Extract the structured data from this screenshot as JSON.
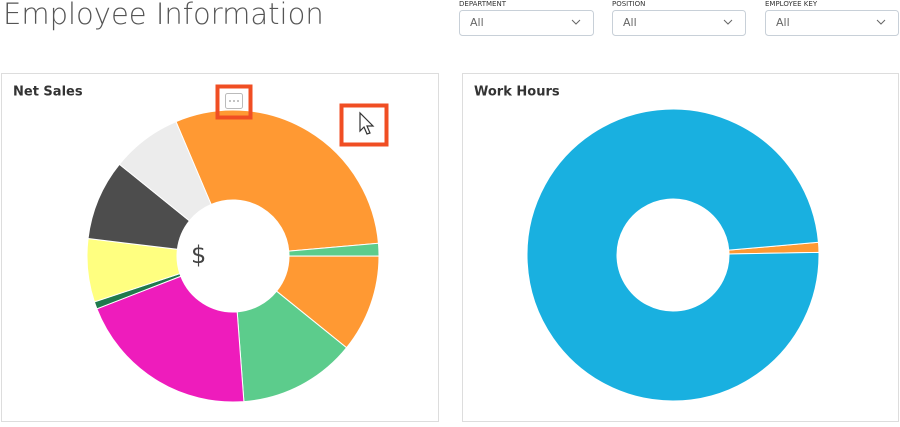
{
  "header": {
    "title": "Employee Information"
  },
  "filters": [
    {
      "label": "DEPARTMENT",
      "value": "All"
    },
    {
      "label": "POSITION",
      "value": "All"
    },
    {
      "label": "EMPLOYEE KEY",
      "value": "All"
    }
  ],
  "chart_data": [
    {
      "type": "donut",
      "title": "Net Sales",
      "center_label": "$",
      "values": [
        30,
        1.4,
        10.8,
        13,
        20.3,
        0.8,
        7,
        8.9,
        7.8
      ],
      "colors": [
        "#ff9933",
        "#5ccc8c",
        "#ff9933",
        "#5ccc8c",
        "#ee1cbc",
        "#1f7a4d",
        "#ffff80",
        "#4d4d4d",
        "#ececec"
      ]
    },
    {
      "type": "donut",
      "title": "Work Hours",
      "values": [
        1.1,
        98.9
      ],
      "colors": [
        "#ff9933",
        "#19b0e0"
      ]
    }
  ]
}
